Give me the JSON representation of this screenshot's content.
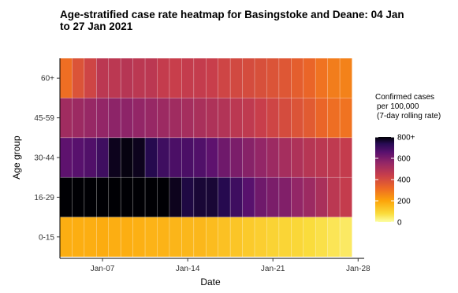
{
  "chart_data": {
    "type": "heatmap",
    "title": "Age-stratified case rate heatmap for Basingstoke and Deane: 04 Jan to 27 Jan 2021",
    "xlabel": "Date",
    "ylabel": "Age group",
    "x_dates": [
      "2021-01-04",
      "2021-01-05",
      "2021-01-06",
      "2021-01-07",
      "2021-01-08",
      "2021-01-09",
      "2021-01-10",
      "2021-01-11",
      "2021-01-12",
      "2021-01-13",
      "2021-01-14",
      "2021-01-15",
      "2021-01-16",
      "2021-01-17",
      "2021-01-18",
      "2021-01-19",
      "2021-01-20",
      "2021-01-21",
      "2021-01-22",
      "2021-01-23",
      "2021-01-24",
      "2021-01-25",
      "2021-01-26",
      "2021-01-27"
    ],
    "x_tick_labels": [
      {
        "label": "Jan-07",
        "date": "2021-01-07"
      },
      {
        "label": "Jan-14",
        "date": "2021-01-14"
      },
      {
        "label": "Jan-21",
        "date": "2021-01-21"
      },
      {
        "label": "Jan-28",
        "date": "2021-01-28"
      }
    ],
    "y_categories": [
      "0-15",
      "16-29",
      "30-44",
      "45-59",
      "60+"
    ],
    "values": {
      "60+": [
        310,
        380,
        420,
        470,
        470,
        480,
        470,
        470,
        450,
        440,
        450,
        450,
        440,
        420,
        410,
        400,
        390,
        380,
        370,
        350,
        330,
        300,
        280,
        270
      ],
      "45-59": [
        530,
        540,
        550,
        560,
        570,
        570,
        560,
        550,
        540,
        530,
        520,
        510,
        500,
        490,
        470,
        460,
        440,
        420,
        400,
        380,
        360,
        330,
        310,
        300
      ],
      "30-44": [
        650,
        660,
        670,
        700,
        780,
        790,
        780,
        740,
        700,
        680,
        680,
        670,
        650,
        620,
        600,
        580,
        560,
        540,
        520,
        500,
        480,
        470,
        460,
        450
      ],
      "16-29": [
        820,
        830,
        830,
        830,
        830,
        820,
        820,
        820,
        810,
        780,
        750,
        760,
        760,
        740,
        700,
        660,
        620,
        600,
        590,
        560,
        540,
        510,
        470,
        450
      ],
      "0-15": [
        180,
        180,
        180,
        185,
        180,
        180,
        175,
        170,
        170,
        165,
        160,
        160,
        150,
        140,
        130,
        120,
        110,
        100,
        95,
        90,
        80,
        70,
        60,
        50
      ]
    },
    "legend": {
      "title": [
        "Confirmed cases",
        "per 100,000",
        "(7-day rolling rate)"
      ],
      "ticks": [
        "800+",
        "600",
        "400",
        "200",
        "0"
      ],
      "tick_values": [
        800,
        600,
        400,
        200,
        0
      ],
      "range": [
        0,
        800
      ],
      "colormap": "inferno-reversed"
    }
  }
}
